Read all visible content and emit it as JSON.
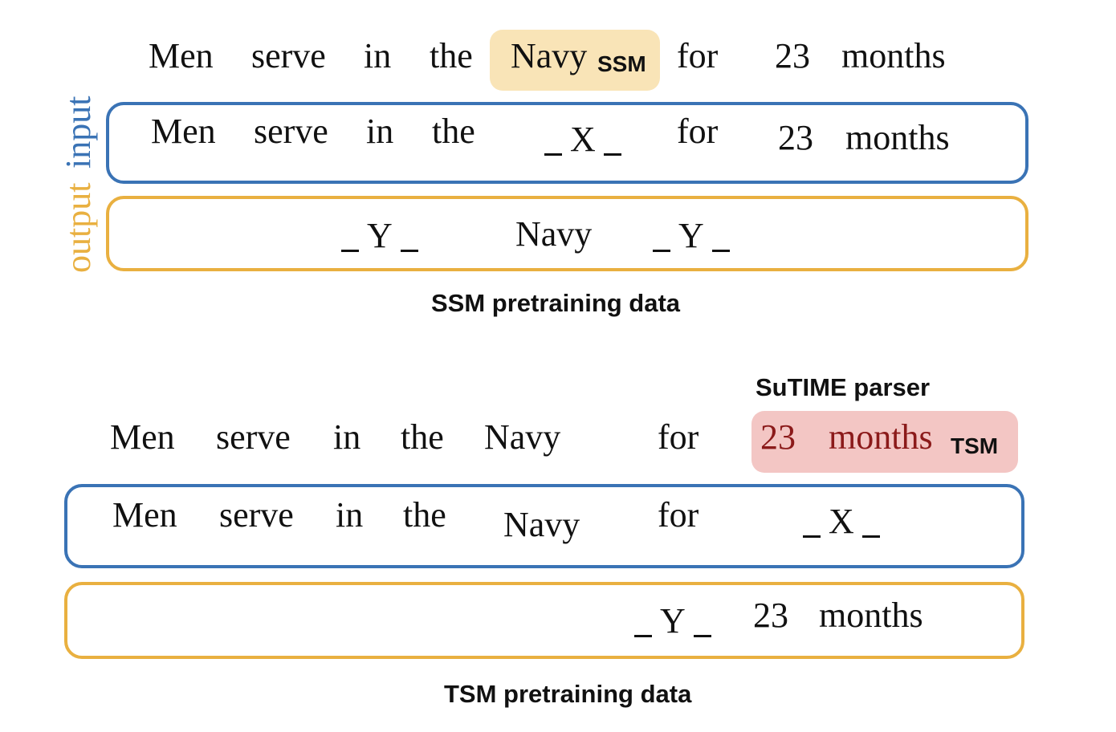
{
  "ssm": {
    "sentence": [
      "Men",
      "serve",
      "in",
      "the",
      "Navy",
      "for",
      "23",
      "months"
    ],
    "highlight_tag": "SSM",
    "input": [
      "Men",
      "serve",
      "in",
      "the",
      "for",
      "23",
      "months"
    ],
    "input_mask": "X",
    "output_word": "Navy",
    "output_mask": "Y",
    "caption": "SSM pretraining data",
    "highlight_color": "#f9e4b7"
  },
  "side_labels": {
    "input": "input",
    "output": "output",
    "input_color": "#3a73b5",
    "output_color": "#e9b040"
  },
  "tsm": {
    "parser_label": "SuTIME parser",
    "sentence": [
      "Men",
      "serve",
      "in",
      "the",
      "Navy",
      "for"
    ],
    "highlight_words": [
      "23",
      "months"
    ],
    "highlight_tag": "TSM",
    "input": [
      "Men",
      "serve",
      "in",
      "the",
      "Navy",
      "for"
    ],
    "input_mask": "X",
    "output_mask": "Y",
    "output_words": [
      "23",
      "months"
    ],
    "caption": "TSM pretraining data",
    "highlight_color": "#f3c6c4"
  }
}
